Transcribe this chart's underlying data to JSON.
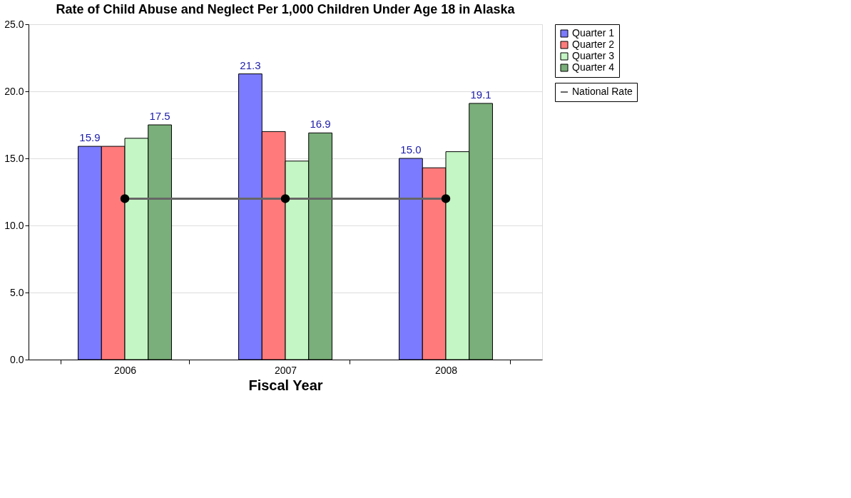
{
  "chart_data": {
    "type": "bar",
    "title": "Rate of Child Abuse and Neglect Per 1,000 Children Under Age 18 in Alaska",
    "xlabel": "Fiscal Year",
    "categories": [
      "2006",
      "2007",
      "2008"
    ],
    "series": [
      {
        "name": "Quarter 1",
        "color": "#7b7bff",
        "values": [
          15.9,
          21.3,
          15.0
        ],
        "value_labels": [
          "15.9",
          "21.3",
          "15.0"
        ]
      },
      {
        "name": "Quarter 2",
        "color": "#ff7b7b",
        "values": [
          15.9,
          17.0,
          14.3
        ]
      },
      {
        "name": "Quarter 3",
        "color": "#c4f5c4",
        "values": [
          16.5,
          14.8,
          15.5
        ]
      },
      {
        "name": "Quarter 4",
        "color": "#7aae7a",
        "values": [
          17.5,
          16.9,
          19.1
        ],
        "value_labels": [
          "17.5",
          "16.9",
          "19.1"
        ]
      },
      {
        "name": "National Rate",
        "type": "line",
        "color": "#666666",
        "marker": "circle",
        "values": [
          12.0,
          12.0,
          12.0
        ]
      }
    ],
    "ylim": [
      0,
      25
    ],
    "yticks": [
      {
        "value": 0,
        "label": "0.0"
      },
      {
        "value": 5,
        "label": "5.0"
      },
      {
        "value": 10,
        "label": "10.0"
      },
      {
        "value": 15,
        "label": "15.0"
      },
      {
        "value": 20,
        "label": "20.0"
      },
      {
        "value": 25,
        "label": "25.0"
      }
    ],
    "grid": "y",
    "legend": "top right"
  }
}
